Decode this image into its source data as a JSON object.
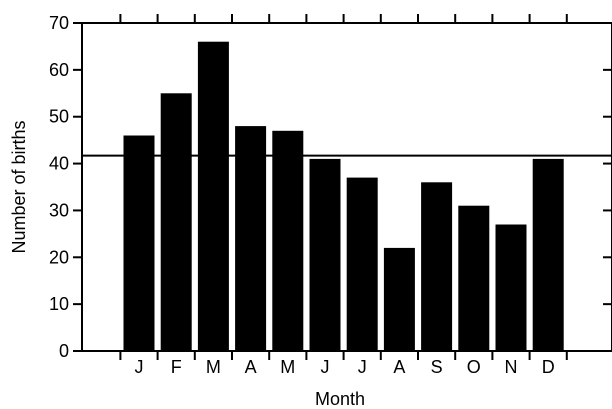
{
  "chart_data": {
    "type": "bar",
    "categories": [
      "J",
      "F",
      "M",
      "A",
      "M",
      "J",
      "J",
      "A",
      "S",
      "O",
      "N",
      "D"
    ],
    "values": [
      46,
      55,
      66,
      48,
      47,
      41,
      37,
      22,
      36,
      31,
      27,
      41
    ],
    "reference_line": 41.7,
    "xlabel": "Month",
    "ylabel": "Number of births",
    "ylim": [
      0,
      70
    ],
    "yticks": [
      0,
      10,
      20,
      30,
      40,
      50,
      60,
      70
    ],
    "grid": false,
    "bar_color": "#000000"
  }
}
